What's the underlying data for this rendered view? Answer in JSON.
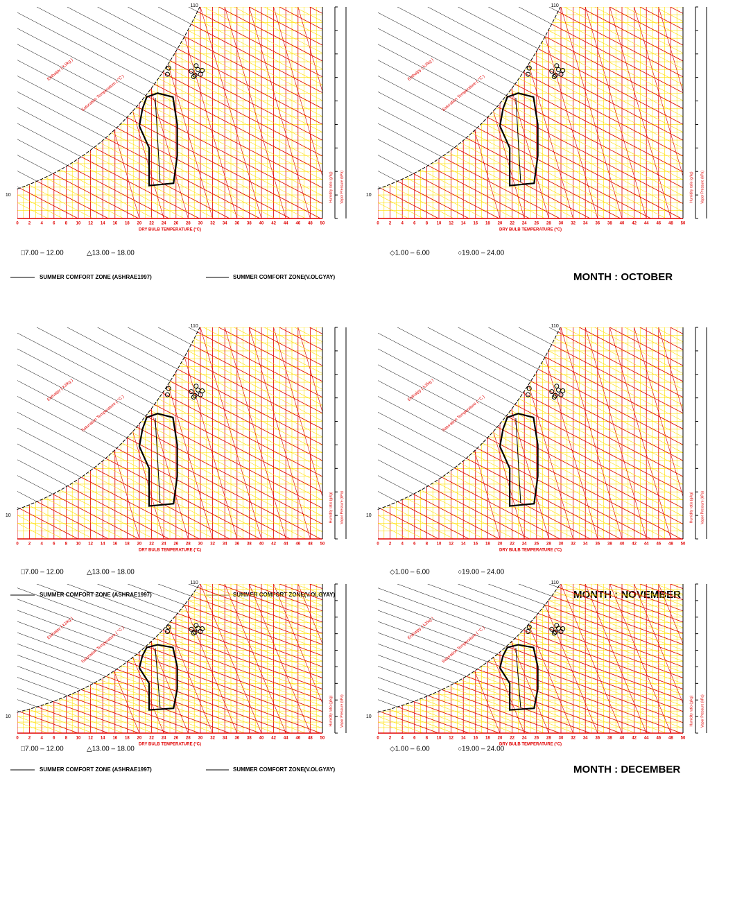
{
  "charts": {
    "xticks": [
      0,
      2,
      4,
      6,
      8,
      10,
      12,
      14,
      16,
      18,
      20,
      22,
      24,
      26,
      28,
      30,
      32,
      34,
      36,
      38,
      40,
      42,
      44,
      46,
      48,
      50
    ],
    "x_axis_title": "DRY BULB TEMPERATURE (°C)",
    "enthalpy_title": "Enthalpy ( kJ/kg )",
    "saturation_title": "Saturation Temperature ( °C )",
    "humidity_title": "Humidity ratio (g/kg)",
    "vapor_title": "Vapor Pressure (kPa)",
    "enthalpy_top": "110",
    "enthalpy_bottom": "10"
  },
  "legend": {
    "morning": "□7.00 – 12.00",
    "afternoon": "△13.00 – 18.00",
    "night": "◇1.00 – 6.00",
    "evening": "○19.00 – 24.00",
    "ashrae": "SUMMER COMFORT ZONE (ASHRAE1997)",
    "olgyay": "SUMMER COMFORT ZONE(V.OLGYAY)"
  },
  "months": [
    {
      "label": "MONTH : OCTOBER"
    },
    {
      "label": "MONTH : NOVEMBER"
    },
    {
      "label": "MONTH : DECEMBER"
    }
  ]
}
